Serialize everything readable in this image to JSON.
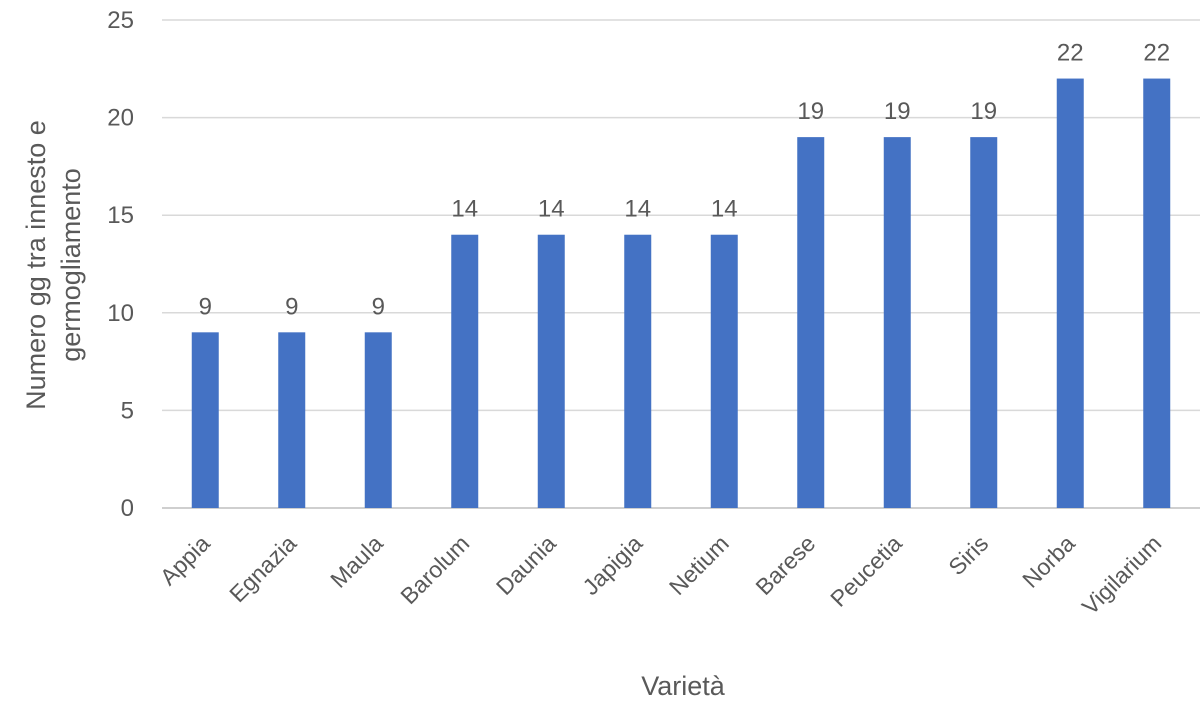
{
  "chart_data": {
    "type": "bar",
    "title": "",
    "xlabel": "Varietà",
    "ylabel_lines": [
      "Numero gg tra innesto e",
      "germogliamento"
    ],
    "categories": [
      "Appia",
      "Egnazia",
      "Maula",
      "Barolum",
      "Daunia",
      "Japigia",
      "Netium",
      "Barese",
      "Peucetia",
      "Siris",
      "Norba",
      "Vigilarium"
    ],
    "values": [
      9,
      9,
      9,
      14,
      14,
      14,
      14,
      19,
      19,
      19,
      22,
      22
    ],
    "ylim": [
      0,
      25
    ],
    "yticks": [
      0,
      5,
      10,
      15,
      20,
      25
    ],
    "grid": true,
    "legend": "none",
    "data_labels": true,
    "bar_color": "#4472C4",
    "grid_color": "#D9D9D9",
    "text_color": "#595959"
  }
}
